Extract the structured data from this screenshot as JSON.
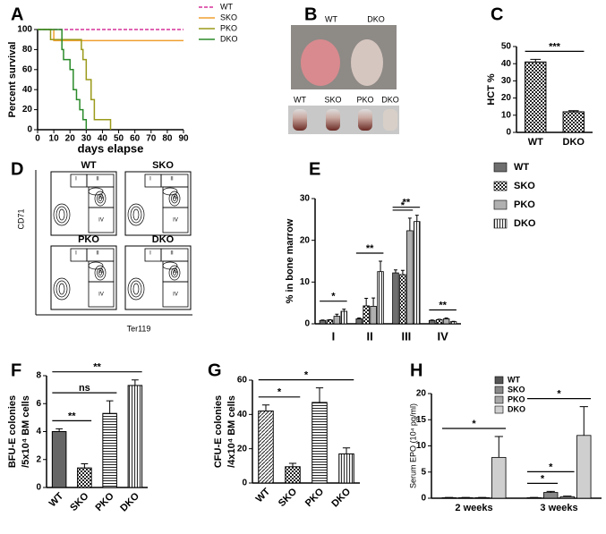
{
  "chart_data": [
    {
      "type": "step",
      "panel": "A",
      "ylabel": "Percent survival",
      "xlabel": "days elapse",
      "xlim": [
        0,
        90
      ],
      "ylim": [
        0,
        100
      ],
      "xticks": [
        0,
        10,
        20,
        30,
        40,
        50,
        60,
        70,
        80,
        90
      ],
      "yticks": [
        0,
        20,
        40,
        60,
        80,
        100
      ],
      "series": [
        {
          "name": "WT",
          "color": "#d6309a",
          "style": "dashed",
          "x": [
            0,
            90
          ],
          "values": [
            100,
            100
          ]
        },
        {
          "name": "SKO",
          "color": "#f0a030",
          "style": "solid",
          "x": [
            0,
            10,
            90
          ],
          "values": [
            100,
            89,
            89
          ]
        },
        {
          "name": "PKO",
          "color": "#9a9a1a",
          "style": "solid",
          "x": [
            0,
            8,
            27,
            28,
            30,
            33,
            35,
            45
          ],
          "values": [
            100,
            90,
            80,
            70,
            50,
            30,
            10,
            0
          ]
        },
        {
          "name": "DKO",
          "color": "#2a8a2a",
          "style": "solid",
          "x": [
            0,
            15,
            16,
            20,
            22,
            24,
            26,
            28,
            30
          ],
          "values": [
            100,
            80,
            70,
            60,
            40,
            30,
            20,
            10,
            0
          ]
        }
      ]
    },
    {
      "type": "bar",
      "panel": "C",
      "ylabel": "HCT %",
      "categories": [
        "WT",
        "DKO"
      ],
      "values": [
        41,
        12
      ],
      "errors": [
        1.5,
        0.6
      ],
      "patterns": [
        "checker",
        "checker"
      ],
      "color": "#555",
      "ylim": [
        0,
        50
      ],
      "yticks": [
        0,
        10,
        20,
        30,
        40,
        50
      ],
      "brackets": [
        {
          "text": "***",
          "from": "WT",
          "to": "DKO"
        }
      ]
    },
    {
      "type": "grouped_bar",
      "panel": "E",
      "ylabel": "% in bone marrow",
      "categories": [
        "I",
        "II",
        "III",
        "IV"
      ],
      "ylim": [
        0,
        30
      ],
      "yticks": [
        0,
        10,
        20,
        30
      ],
      "series": [
        {
          "name": "WT",
          "color": "#6e6e6e",
          "pattern": "solid",
          "values": [
            0.8,
            1.2,
            12.2,
            0.8
          ],
          "errors": [
            0.1,
            0.2,
            0.7,
            0.1
          ]
        },
        {
          "name": "SKO",
          "color": "#555",
          "pattern": "checker",
          "values": [
            0.9,
            4.3,
            11.8,
            1.0
          ],
          "errors": [
            0.1,
            1.8,
            1.0,
            0.1
          ]
        },
        {
          "name": "PKO",
          "color": "#b0b0b0",
          "pattern": "solid",
          "values": [
            1.8,
            4.2,
            22.3,
            1.2
          ],
          "errors": [
            0.5,
            2.0,
            3.0,
            0.2
          ]
        },
        {
          "name": "DKO",
          "color": "#c8c8c8",
          "pattern": "vstripe",
          "values": [
            3.0,
            12.5,
            24.5,
            0.5
          ],
          "errors": [
            0.5,
            2.5,
            1.5,
            0.1
          ]
        }
      ],
      "brackets": [
        {
          "text": "*",
          "category": "I",
          "from": "WT",
          "to": "DKO"
        },
        {
          "text": "**",
          "category": "II",
          "from": "WT",
          "to": "DKO"
        },
        {
          "text": "*",
          "category": "III",
          "from": "WT",
          "to": "PKO"
        },
        {
          "text": "**",
          "category": "III",
          "from": "WT",
          "to": "DKO"
        },
        {
          "text": "**",
          "category": "IV",
          "from": "WT",
          "to": "DKO"
        }
      ]
    },
    {
      "type": "bar",
      "panel": "F",
      "ylabel": [
        "BFU-E colonies",
        "/5x10⁴ BM cells"
      ],
      "categories": [
        "WT",
        "SKO",
        "PKO",
        "DKO"
      ],
      "values": [
        4.0,
        1.4,
        5.3,
        7.3
      ],
      "errors": [
        0.2,
        0.3,
        0.9,
        0.4
      ],
      "patterns": [
        "solid",
        "checker",
        "hstripe",
        "vstripe"
      ],
      "color": "#666",
      "ylim": [
        0,
        8
      ],
      "yticks": [
        0,
        2,
        4,
        6,
        8
      ],
      "brackets": [
        {
          "text": "**",
          "from": "WT",
          "to": "SKO"
        },
        {
          "text": "ns",
          "from": "WT",
          "to": "PKO"
        },
        {
          "text": "**",
          "from": "WT",
          "to": "DKO"
        }
      ]
    },
    {
      "type": "bar",
      "panel": "G",
      "ylabel": [
        "CFU-E colonies",
        "/4x10⁴ BM cells"
      ],
      "categories": [
        "WT",
        "SKO",
        "PKO",
        "DKO"
      ],
      "values": [
        42,
        9.5,
        47,
        17
      ],
      "errors": [
        3.5,
        2,
        8.5,
        3.5
      ],
      "patterns": [
        "dstripe",
        "checker",
        "hstripe",
        "vstripe"
      ],
      "color": "#666",
      "ylim": [
        0,
        60
      ],
      "yticks": [
        0,
        20,
        40,
        60
      ],
      "brackets": [
        {
          "text": "*",
          "from": "WT",
          "to": "SKO"
        },
        {
          "text": "*",
          "from": "WT",
          "to": "DKO"
        }
      ]
    },
    {
      "type": "grouped_bar",
      "panel": "H",
      "ylabel": "Serum EPO (10⁴ pg/ml)",
      "categories": [
        "2 weeks",
        "3 weeks"
      ],
      "ylim": [
        0,
        20
      ],
      "yticks": [
        0,
        5,
        10,
        15,
        20
      ],
      "series": [
        {
          "name": "WT",
          "color": "#555",
          "pattern": "solid",
          "values": [
            0.1,
            0.1
          ],
          "errors": [
            0.05,
            0.05
          ]
        },
        {
          "name": "SKO",
          "color": "#888",
          "pattern": "solid",
          "values": [
            0.1,
            1.1
          ],
          "errors": [
            0.05,
            0.2
          ]
        },
        {
          "name": "PKO",
          "color": "#a8a8a8",
          "pattern": "solid",
          "values": [
            0.1,
            0.3
          ],
          "errors": [
            0.05,
            0.1
          ]
        },
        {
          "name": "DKO",
          "color": "#cfcfcf",
          "pattern": "solid",
          "values": [
            7.8,
            12
          ],
          "errors": [
            4,
            5.5
          ]
        }
      ],
      "brackets": [
        {
          "text": "*",
          "category": "2 weeks",
          "from": "WT",
          "to": "DKO"
        },
        {
          "text": "*",
          "category": "3 weeks",
          "from": "WT",
          "to": "SKO"
        },
        {
          "text": "*",
          "category": "3 weeks",
          "from": "WT",
          "to": "PKO"
        },
        {
          "text": "*",
          "category": "3 weeks",
          "from": "WT",
          "to": "DKO"
        }
      ]
    }
  ],
  "photo_panel": {
    "panel": "B",
    "paw_labels": [
      "WT",
      "DKO"
    ],
    "tube_labels": [
      "WT",
      "SKO",
      "PKO",
      "DKO"
    ]
  },
  "flow_panel": {
    "panel": "D",
    "samples": [
      "WT",
      "SKO",
      "PKO",
      "DKO"
    ],
    "y_axis": "CD71",
    "x_axis": "Ter119",
    "gates": [
      "I",
      "II",
      "III",
      "IV"
    ]
  }
}
